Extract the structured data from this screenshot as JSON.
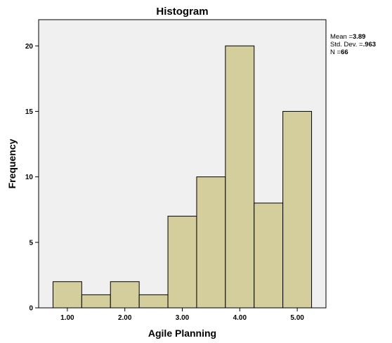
{
  "chart_data": {
    "type": "bar",
    "title": "Histogram",
    "xlabel": "Agile Planning",
    "ylabel": "Frequency",
    "bin_width": 0.5,
    "bins": [
      {
        "start": 0.75,
        "end": 1.25,
        "value": 2
      },
      {
        "start": 1.25,
        "end": 1.75,
        "value": 1
      },
      {
        "start": 1.75,
        "end": 2.25,
        "value": 2
      },
      {
        "start": 2.25,
        "end": 2.75,
        "value": 1
      },
      {
        "start": 2.75,
        "end": 3.25,
        "value": 7
      },
      {
        "start": 3.25,
        "end": 3.75,
        "value": 10
      },
      {
        "start": 3.75,
        "end": 4.25,
        "value": 20
      },
      {
        "start": 4.25,
        "end": 4.75,
        "value": 8
      },
      {
        "start": 4.75,
        "end": 5.25,
        "value": 15
      }
    ],
    "x_ticks": [
      1,
      2,
      3,
      4,
      5
    ],
    "x_tick_labels": [
      "1.00",
      "2.00",
      "3.00",
      "4.00",
      "5.00"
    ],
    "xlim": [
      0.5,
      5.5
    ],
    "y_ticks": [
      0,
      5,
      10,
      15,
      20
    ],
    "y_tick_labels": [
      "0",
      "5",
      "10",
      "15",
      "20"
    ],
    "ylim": [
      0,
      22
    ],
    "grid": false,
    "bar_color": "#d3ce9c",
    "plot_bg": "#f0f0f0",
    "stats": {
      "mean_label": "Mean =",
      "mean_value": "3.89",
      "sd_label": "Std. Dev. =",
      "sd_value": ".963",
      "n_label": "N =",
      "n_value": "66"
    }
  }
}
